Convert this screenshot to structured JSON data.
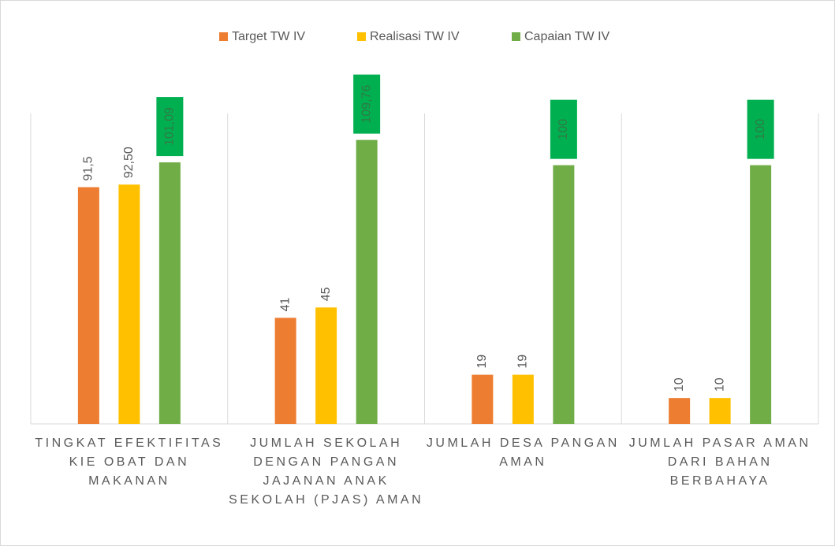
{
  "chart_data": {
    "type": "bar",
    "categories": [
      "TINGKAT EFEKTIFITAS KIE OBAT DAN MAKANAN",
      "JUMLAH SEKOLAH DENGAN PANGAN JAJANAN ANAK SEKOLAH (PJAS) AMAN",
      "JUMLAH DESA PANGAN AMAN",
      "JUMLAH PASAR AMAN DARI BAHAN BERBAHAYA"
    ],
    "series": [
      {
        "name": "Target TW IV",
        "color": "#ed7d31",
        "values": [
          91.5,
          41,
          19,
          10
        ],
        "value_labels": [
          "91,5",
          "41",
          "19",
          "10"
        ]
      },
      {
        "name": "Realisasi TW IV",
        "color": "#ffc000",
        "values": [
          92.5,
          45,
          19,
          10
        ],
        "value_labels": [
          "92,50",
          "45",
          "19",
          "10"
        ]
      },
      {
        "name": "Capaian TW IV",
        "color": "#70ad47",
        "values": [
          101.09,
          109.76,
          100,
          100
        ],
        "value_labels": [
          "101,09",
          "109,76",
          "100",
          "100"
        ]
      }
    ],
    "ylim": [
      0,
      120
    ],
    "legend": "top"
  }
}
